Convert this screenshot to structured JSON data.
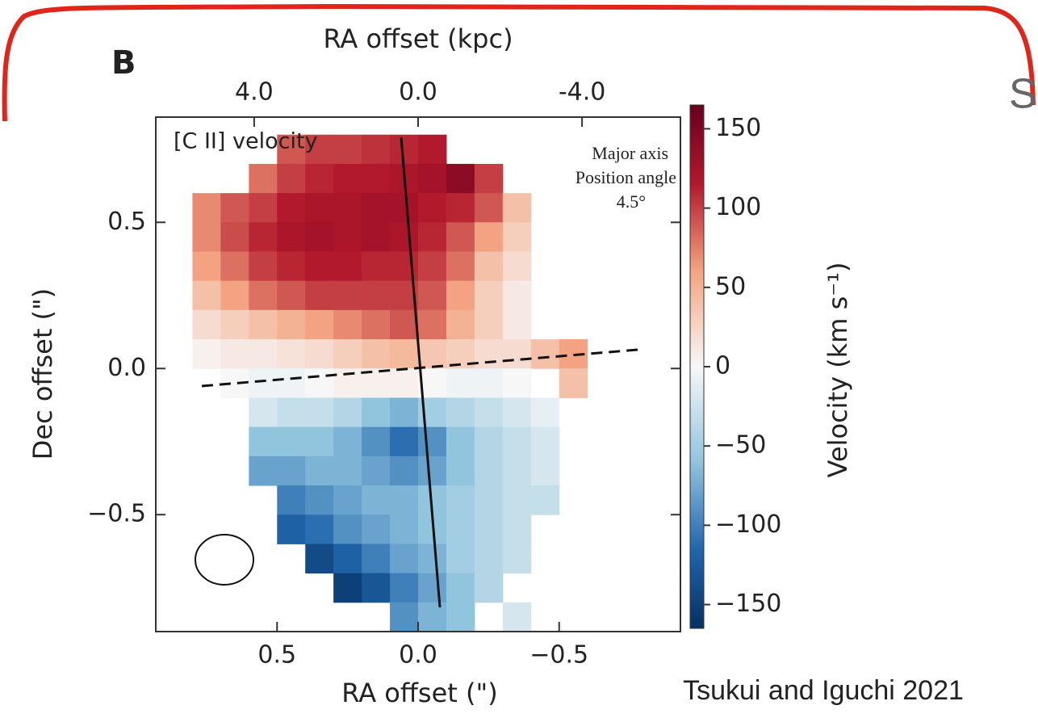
{
  "chart_data": {
    "type": "heatmap",
    "panel_label": "B",
    "annotation": "[C II] velocity",
    "major_axis_note": [
      "Major axis",
      "Position angle",
      "4.5°"
    ],
    "xlabel": "RA offset (\")",
    "x2label": "RA offset (kpc)",
    "ylabel": "Dec offset (\")",
    "colorbar_label": "Velocity (km s⁻¹)",
    "credit": "Tsukui and Iguchi 2021",
    "side_text": "S",
    "xlim": [
      0.93,
      -0.93
    ],
    "xticks": [
      {
        "value": 0.5,
        "label": "0.5"
      },
      {
        "value": 0,
        "label": "0.0"
      },
      {
        "value": -0.5,
        "label": "−0.5"
      }
    ],
    "x2lim": [
      6.4,
      -6.4
    ],
    "x2ticks": [
      {
        "value": 4,
        "label": "4.0"
      },
      {
        "value": 0,
        "label": "0.0"
      },
      {
        "value": -4,
        "label": "-4.0"
      }
    ],
    "ylim": [
      -0.9,
      0.86
    ],
    "yticks": [
      {
        "value": 0.5,
        "label": "0.5"
      },
      {
        "value": 0,
        "label": "0.0"
      },
      {
        "value": -0.5,
        "label": "−0.5"
      }
    ],
    "clim": [
      -165,
      165
    ],
    "cticks": [
      150,
      100,
      50,
      {
        "value": 0,
        "label": "0"
      },
      {
        "value": -50,
        "label": "−50"
      },
      {
        "value": -100,
        "label": "−100"
      },
      {
        "value": -150,
        "label": "−150"
      }
    ],
    "x": [
      0.75,
      0.65,
      0.55,
      0.45,
      0.35,
      0.25,
      0.15,
      0.05,
      -0.05,
      -0.15,
      -0.25,
      -0.35,
      -0.45,
      -0.55
    ],
    "y": [
      0.75,
      0.65,
      0.55,
      0.45,
      0.35,
      0.25,
      0.15,
      0.05,
      -0.05,
      -0.15,
      -0.25,
      -0.35,
      -0.45,
      -0.55,
      -0.65,
      -0.75,
      -0.85
    ],
    "values": [
      [
        null,
        null,
        null,
        90,
        100,
        100,
        105,
        110,
        115,
        null,
        null,
        null,
        null,
        null
      ],
      [
        null,
        null,
        80,
        100,
        110,
        115,
        115,
        120,
        125,
        140,
        100,
        null,
        null,
        null
      ],
      [
        70,
        90,
        100,
        115,
        120,
        120,
        125,
        125,
        115,
        110,
        90,
        40,
        null,
        null
      ],
      [
        70,
        95,
        110,
        120,
        125,
        120,
        125,
        120,
        110,
        90,
        60,
        30,
        null,
        null
      ],
      [
        60,
        80,
        100,
        110,
        115,
        115,
        110,
        110,
        100,
        80,
        40,
        20,
        null,
        null
      ],
      [
        40,
        60,
        80,
        90,
        100,
        100,
        100,
        100,
        90,
        60,
        30,
        10,
        null,
        null
      ],
      [
        20,
        30,
        40,
        50,
        60,
        70,
        80,
        90,
        80,
        50,
        30,
        10,
        null,
        null
      ],
      [
        5,
        10,
        10,
        15,
        20,
        30,
        40,
        45,
        35,
        30,
        20,
        20,
        40,
        60
      ],
      [
        null,
        0,
        -5,
        -5,
        0,
        5,
        5,
        5,
        0,
        -5,
        -5,
        0,
        null,
        40
      ],
      [
        null,
        null,
        -20,
        -30,
        -30,
        -40,
        -60,
        -70,
        -50,
        -40,
        -30,
        -20,
        -10,
        null
      ],
      [
        null,
        null,
        -60,
        -60,
        -60,
        -70,
        -90,
        -110,
        -90,
        -60,
        -40,
        -30,
        -20,
        null
      ],
      [
        null,
        null,
        -80,
        -80,
        -70,
        -70,
        -80,
        -90,
        -80,
        -60,
        -40,
        -30,
        -20,
        null
      ],
      [
        null,
        null,
        null,
        -100,
        -90,
        -80,
        -70,
        -70,
        -60,
        -50,
        -40,
        -30,
        -30,
        null
      ],
      [
        null,
        null,
        null,
        -120,
        -110,
        -90,
        -80,
        -70,
        -60,
        -50,
        -40,
        -30,
        null,
        null
      ],
      [
        null,
        null,
        null,
        null,
        -140,
        -120,
        -100,
        -80,
        -70,
        -50,
        -40,
        -30,
        null,
        null
      ],
      [
        null,
        null,
        null,
        null,
        null,
        -150,
        -130,
        -100,
        -80,
        -60,
        -40,
        null,
        null,
        null
      ],
      [
        null,
        null,
        null,
        null,
        null,
        null,
        null,
        -90,
        -70,
        -60,
        null,
        -20,
        null,
        null
      ]
    ]
  }
}
